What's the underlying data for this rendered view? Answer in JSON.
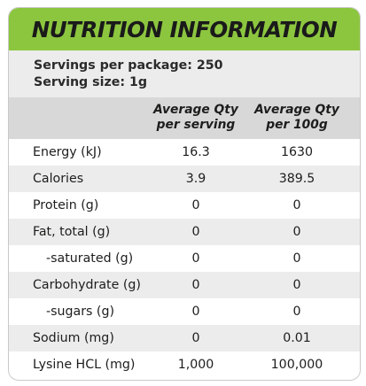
{
  "title": "NUTRITION INFORMATION",
  "servings_per_package": "Servings per package: 250",
  "serving_size": "Serving size: 1g",
  "columns": {
    "per_serving_line1": "Average Qty",
    "per_serving_line2": "per serving",
    "per_100g_line1": "Average Qty",
    "per_100g_line2": "per 100g"
  },
  "rows": [
    {
      "label": "Energy (kJ)",
      "per_serving": "16.3",
      "per_100g": "1630"
    },
    {
      "label": "Calories",
      "per_serving": "3.9",
      "per_100g": "389.5"
    },
    {
      "label": "Protein (g)",
      "per_serving": "0",
      "per_100g": "0"
    },
    {
      "label": "Fat, total (g)",
      "per_serving": "0",
      "per_100g": "0"
    },
    {
      "label": "-saturated (g)",
      "per_serving": "0",
      "per_100g": "0"
    },
    {
      "label": "Carbohydrate (g)",
      "per_serving": "0",
      "per_100g": "0"
    },
    {
      "label": "-sugars (g)",
      "per_serving": "0",
      "per_100g": "0"
    },
    {
      "label": "Sodium (mg)",
      "per_serving": "0",
      "per_100g": "0.01"
    },
    {
      "label": "Lysine HCL (mg)",
      "per_serving": "1,000",
      "per_100g": "100,000"
    }
  ],
  "colors": {
    "title_bar": "#8cc63f",
    "panel": "#ececec",
    "header_band": "#d8d8d8",
    "alt_row": "#ffffff"
  }
}
